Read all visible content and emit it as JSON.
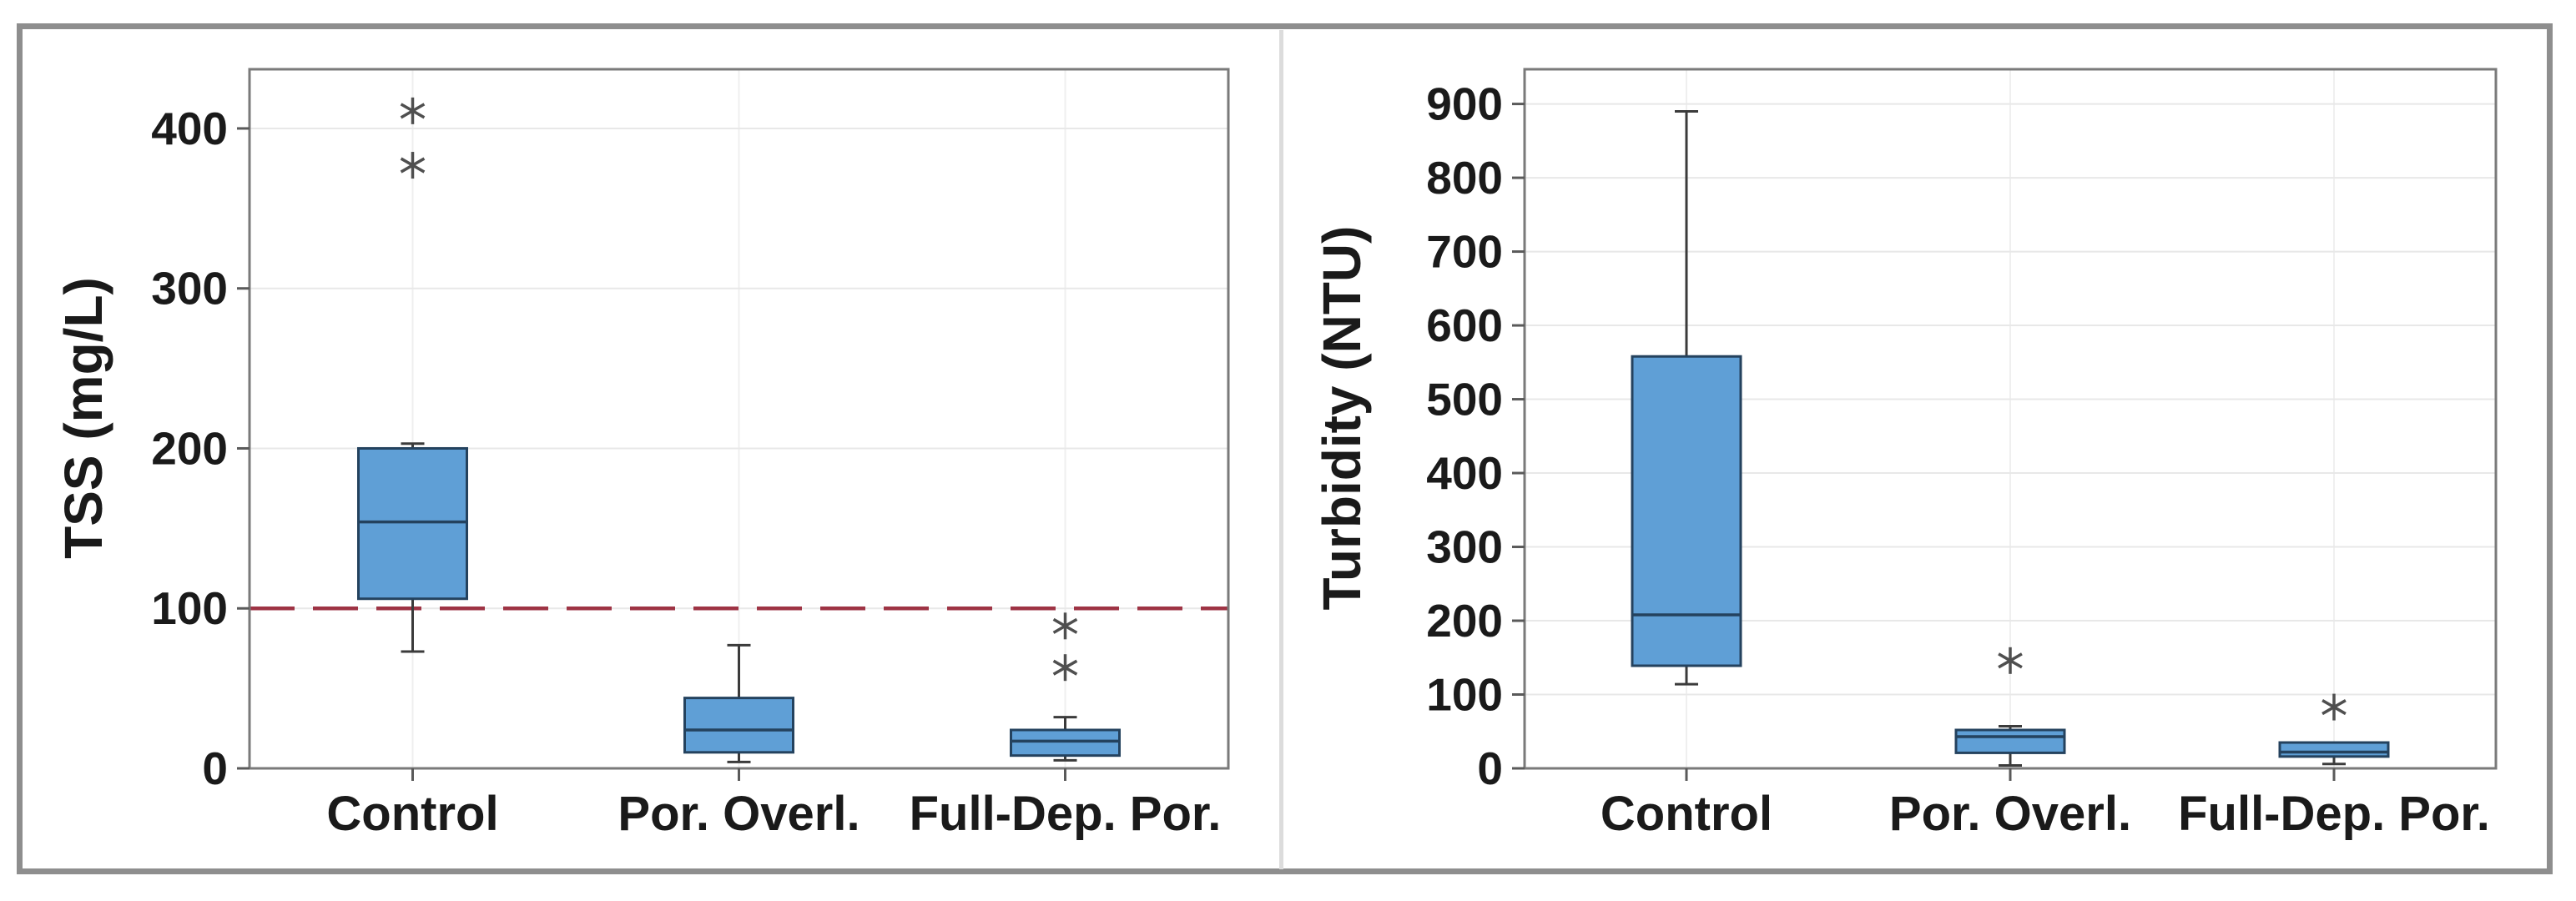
{
  "figure": {
    "background": "#FFFFFF",
    "border_color": "#8E8E8E",
    "divider_color": "#DCDCDC"
  },
  "chart_data": [
    {
      "type": "box",
      "panel": "left",
      "title": "",
      "xlabel": "",
      "ylabel": "TSS (mg/L)",
      "categories": [
        "Control",
        "Por. Overl.",
        "Full-Dep. Por."
      ],
      "yticks": [
        0,
        100,
        200,
        300,
        400
      ],
      "ylim": [
        0,
        437
      ],
      "grid": "on",
      "reference_line": {
        "y": 100,
        "color": "#9E3344",
        "style": "dashed"
      },
      "series": [
        {
          "name": "Control",
          "whisker_low": 73,
          "q1": 106,
          "median": 154,
          "q3": 200,
          "whisker_high": 203,
          "outliers": [
            377,
            411
          ]
        },
        {
          "name": "Por. Overl.",
          "whisker_low": 4,
          "q1": 10,
          "median": 24,
          "q3": 44,
          "whisker_high": 77,
          "outliers": []
        },
        {
          "name": "Full-Dep. Por.",
          "whisker_low": 5,
          "q1": 8,
          "median": 17,
          "q3": 24,
          "whisker_high": 32,
          "outliers": [
            63,
            89
          ]
        }
      ],
      "colors": {
        "box_fill": "#5F9FD6",
        "box_edge": "#24425E",
        "median": "#24425E",
        "whisker": "#3B3B3B",
        "outlier": "#4F4F4F",
        "grid": "#E8E8E8",
        "axis": "#7A7A7A",
        "text": "#1A1A1A"
      }
    },
    {
      "type": "box",
      "panel": "right",
      "title": "",
      "xlabel": "",
      "ylabel": "Turbidity (NTU)",
      "categories": [
        "Control",
        "Por. Overl.",
        "Full-Dep. Por."
      ],
      "yticks": [
        0,
        100,
        200,
        300,
        400,
        500,
        600,
        700,
        800,
        900
      ],
      "ylim": [
        0,
        947
      ],
      "grid": "on",
      "reference_line": null,
      "series": [
        {
          "name": "Control",
          "whisker_low": 114,
          "q1": 139,
          "median": 208,
          "q3": 558,
          "whisker_high": 890,
          "outliers": []
        },
        {
          "name": "Por. Overl.",
          "whisker_low": 4,
          "q1": 21,
          "median": 43,
          "q3": 52,
          "whisker_high": 57,
          "outliers": [
            146
          ]
        },
        {
          "name": "Full-Dep. Por.",
          "whisker_low": 6,
          "q1": 16,
          "median": 22,
          "q3": 35,
          "whisker_high": 35,
          "outliers": [
            83
          ]
        }
      ],
      "colors": {
        "box_fill": "#5F9FD6",
        "box_edge": "#24425E",
        "median": "#24425E",
        "whisker": "#3B3B3B",
        "outlier": "#4F4F4F",
        "grid": "#E8E8E8",
        "axis": "#7A7A7A",
        "text": "#1A1A1A"
      }
    }
  ]
}
